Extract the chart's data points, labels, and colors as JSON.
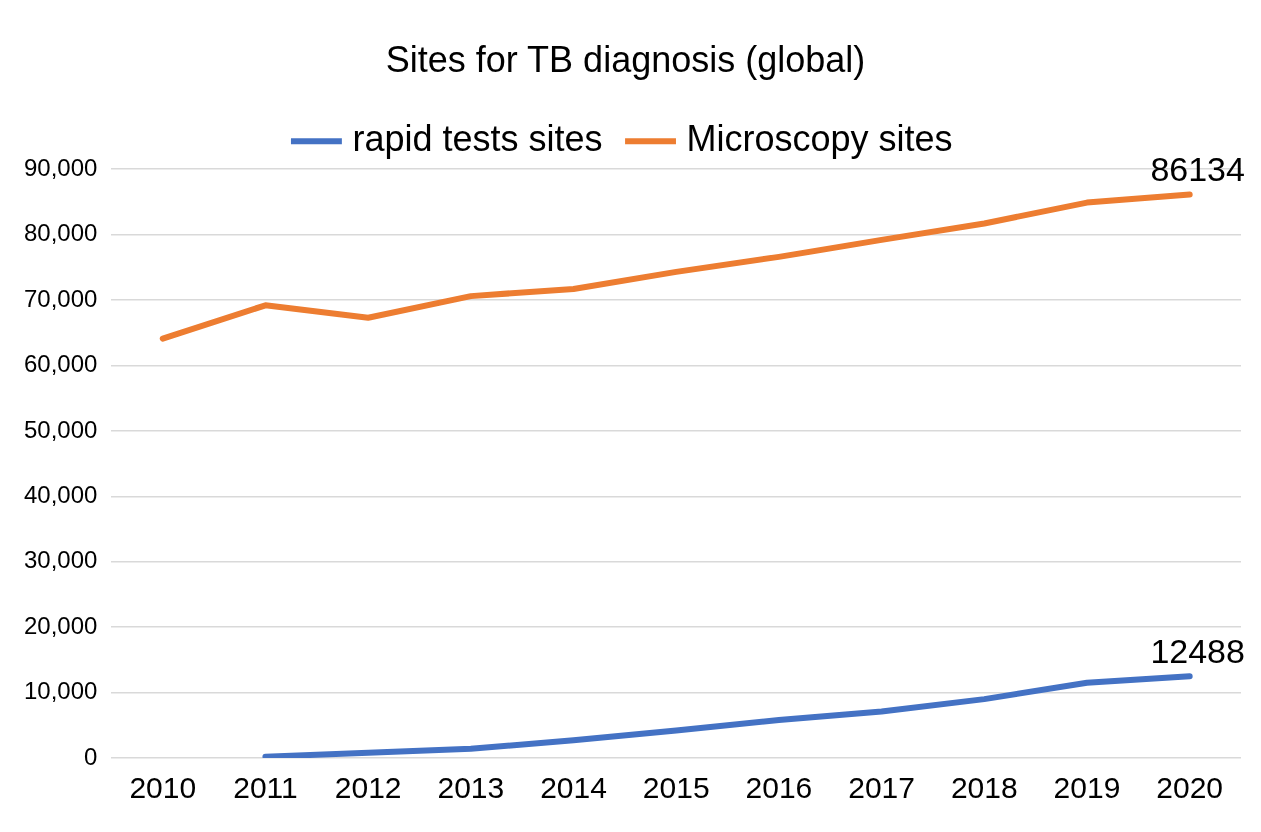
{
  "chart_data": {
    "type": "line",
    "title": "Sites for TB diagnosis (global)",
    "categories": [
      "2010",
      "2011",
      "2012",
      "2013",
      "2014",
      "2015",
      "2016",
      "2017",
      "2018",
      "2019",
      "2020"
    ],
    "series": [
      {
        "name": "rapid tests sites",
        "color": "#4472c4",
        "values": [
          null,
          200,
          800,
          1400,
          2700,
          4200,
          5800,
          7100,
          9000,
          11500,
          12488
        ],
        "value_labels": [
          null,
          null,
          null,
          null,
          null,
          null,
          null,
          null,
          null,
          null,
          "12488"
        ]
      },
      {
        "name": "Microscopy sites",
        "color": "#ed7d31",
        "values": [
          64100,
          69200,
          67300,
          70600,
          71700,
          74300,
          76600,
          79200,
          81700,
          84900,
          86134
        ],
        "value_labels": [
          null,
          null,
          null,
          null,
          null,
          null,
          null,
          null,
          null,
          null,
          "86134"
        ]
      }
    ],
    "ylim": [
      0,
      90000
    ],
    "yticks": [
      {
        "value": 0,
        "label": "0"
      },
      {
        "value": 10000,
        "label": "10,000"
      },
      {
        "value": 20000,
        "label": "20,000"
      },
      {
        "value": 30000,
        "label": "30,000"
      },
      {
        "value": 40000,
        "label": "40,000"
      },
      {
        "value": 50000,
        "label": "50,000"
      },
      {
        "value": 60000,
        "label": "60,000"
      },
      {
        "value": 70000,
        "label": "70,000"
      },
      {
        "value": 80000,
        "label": "80,000"
      },
      {
        "value": 90000,
        "label": "90,000"
      }
    ],
    "grid": "y",
    "legend": "top",
    "marker": "none",
    "line_style": "solid"
  }
}
